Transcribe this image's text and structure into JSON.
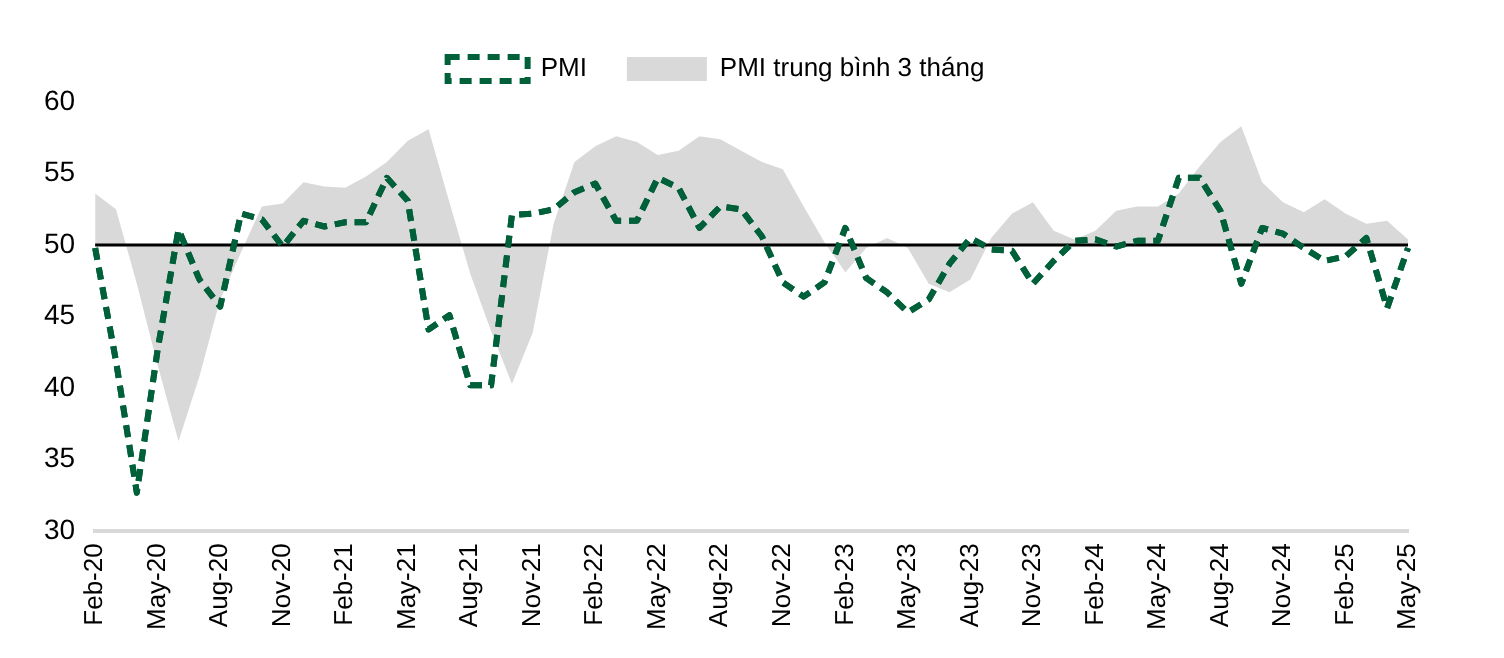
{
  "chart_data": {
    "type": "line",
    "categories": [
      "Feb-20",
      null,
      null,
      "May-20",
      null,
      null,
      "Aug-20",
      null,
      null,
      "Nov-20",
      null,
      null,
      "Feb-21",
      null,
      null,
      "May-21",
      null,
      null,
      "Aug-21",
      null,
      null,
      "Nov-21",
      null,
      null,
      "Feb-22",
      null,
      null,
      "May-22",
      null,
      null,
      "Aug-22",
      null,
      null,
      "Nov-22",
      null,
      null,
      "Feb-23",
      null,
      null,
      "May-23",
      null,
      null,
      "Aug-23",
      null,
      null,
      "Nov-23",
      null,
      null,
      "Feb-24",
      null,
      null,
      "May-24",
      null,
      null,
      "Aug-24",
      null,
      null,
      "Nov-24",
      null,
      null,
      "Feb-25",
      null,
      null,
      "May-25"
    ],
    "series": [
      {
        "name": "PMI trung bình 3 tháng",
        "type": "area",
        "color": "#d9d9d9",
        "values": [
          53.6,
          52.5,
          47.3,
          41.6,
          36.3,
          40.8,
          46.2,
          49.5,
          52.7,
          52.9,
          54.4,
          54.1,
          54.0,
          54.8,
          55.8,
          57.3,
          58.1,
          53.0,
          48.0,
          44.0,
          40.3,
          43.9,
          51.5,
          55.8,
          56.9,
          57.6,
          57.2,
          56.3,
          56.6,
          57.6,
          57.4,
          56.6,
          55.8,
          55.3,
          52.7,
          50.2,
          48.1,
          49.8,
          50.5,
          49.8,
          47.3,
          46.7,
          47.6,
          50.5,
          52.2,
          53.0,
          51.0,
          50.4,
          51.0,
          52.4,
          52.7,
          52.7,
          53.6,
          55.5,
          57.2,
          58.3,
          54.4,
          53.0,
          52.3,
          53.2,
          52.2,
          51.5,
          51.7,
          50.4
        ]
      },
      {
        "name": "PMI",
        "type": "line",
        "color": "#00603a",
        "line_style": "dashed",
        "values": [
          49.8,
          41.9,
          32.7,
          42.7,
          51.1,
          47.6,
          45.7,
          52.2,
          51.8,
          49.9,
          51.7,
          51.3,
          51.6,
          51.6,
          54.7,
          53.1,
          44.1,
          45.1,
          40.2,
          40.2,
          52.1,
          52.2,
          52.5,
          53.7,
          54.3,
          51.7,
          51.7,
          54.7,
          54.0,
          51.2,
          52.7,
          52.5,
          50.6,
          47.4,
          46.4,
          47.4,
          51.2,
          47.7,
          46.7,
          45.3,
          46.2,
          48.7,
          50.5,
          49.7,
          49.6,
          47.3,
          48.9,
          50.3,
          50.4,
          49.9,
          50.3,
          50.3,
          54.7,
          54.7,
          52.4,
          47.3,
          51.2,
          50.8,
          49.8,
          48.9,
          49.2,
          50.5,
          45.6,
          49.8
        ]
      }
    ],
    "ylim": [
      30,
      60
    ],
    "yticks": [
      30,
      35,
      40,
      45,
      50,
      55,
      60
    ],
    "ref_lines": [
      {
        "axis": "y",
        "value": 50,
        "color": "#000000"
      }
    ],
    "grid": false,
    "legend": "top",
    "marker": "none"
  }
}
